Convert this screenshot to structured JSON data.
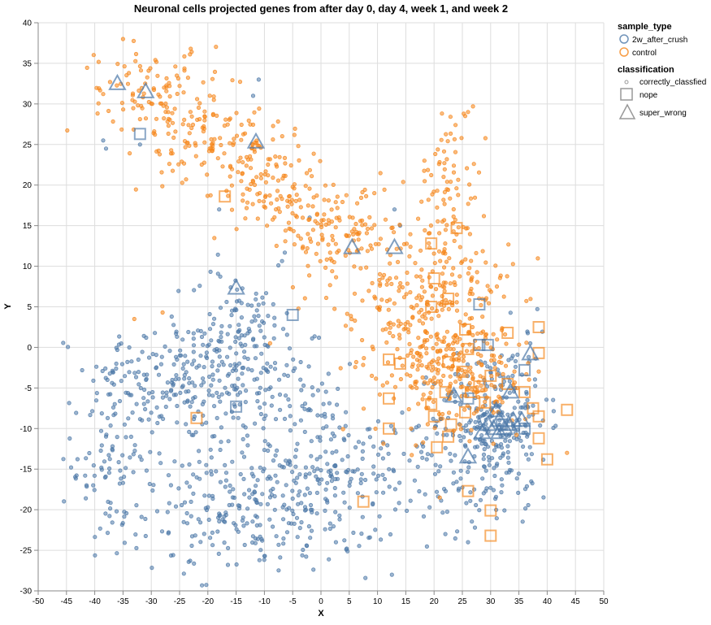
{
  "chart_data": {
    "type": "scatter",
    "title": "Neuronal cells projected genes from after day 0, day 4, week 1, and week 2",
    "xlabel": "X",
    "ylabel": "Y",
    "xlim": [
      -50,
      50
    ],
    "ylim": [
      -30,
      40
    ],
    "x_ticks": [
      -50,
      -45,
      -40,
      -35,
      -30,
      -25,
      -20,
      -15,
      -10,
      -5,
      0,
      5,
      10,
      15,
      20,
      25,
      30,
      35,
      40,
      45,
      50
    ],
    "y_ticks": [
      -30,
      -25,
      -20,
      -15,
      -10,
      -5,
      0,
      5,
      10,
      15,
      20,
      25,
      30,
      35,
      40
    ],
    "grid": true,
    "legend_position": "right",
    "legend": {
      "color_title": "sample_type",
      "color_entries": [
        {
          "label": "2w_after_crush",
          "color": "#4c78a8"
        },
        {
          "label": "control",
          "color": "#f58518"
        }
      ],
      "shape_title": "classification",
      "shape_entries": [
        {
          "label": "correctly_classfied",
          "shape": "circle"
        },
        {
          "label": "nope",
          "shape": "square"
        },
        {
          "label": "super_wrong",
          "shape": "triangle"
        }
      ]
    },
    "series": [
      {
        "name": "2w_after_crush",
        "color": "#4c78a8",
        "clusters": [
          {
            "cx": -25,
            "cy": -4,
            "sx": 8,
            "sy": 4,
            "n": 220
          },
          {
            "cx": -38,
            "cy": -14,
            "sx": 3,
            "sy": 6,
            "n": 80
          },
          {
            "cx": -12,
            "cy": -20,
            "sx": 11,
            "sy": 4,
            "n": 260
          },
          {
            "cx": 3,
            "cy": -16,
            "sx": 7,
            "sy": 4,
            "n": 130
          },
          {
            "cx": -12,
            "cy": -3,
            "sx": 6,
            "sy": 6,
            "n": 130
          },
          {
            "cx": -15,
            "cy": 4,
            "sx": 4,
            "sy": 3,
            "n": 40
          },
          {
            "cx": 30,
            "cy": -9,
            "sx": 5,
            "sy": 4,
            "n": 170
          },
          {
            "cx": 28,
            "cy": -15,
            "sx": 7,
            "sy": 4,
            "n": 110
          },
          {
            "cx": 35,
            "cy": -2,
            "sx": 3,
            "sy": 4,
            "n": 40
          },
          {
            "cx": -2,
            "cy": -8,
            "sx": 5,
            "sy": 3,
            "n": 40
          }
        ],
        "points": [
          {
            "x": -38.5,
            "y": 25.5
          },
          {
            "x": -38,
            "y": 24.5
          },
          {
            "x": -32,
            "y": 25
          },
          {
            "x": -11,
            "y": 33
          },
          {
            "x": -12,
            "y": 31
          },
          {
            "x": -18,
            "y": 17
          },
          {
            "x": -2,
            "y": 16
          },
          {
            "x": 13,
            "y": 17
          },
          {
            "x": 14,
            "y": 15
          },
          {
            "x": 22,
            "y": -23
          },
          {
            "x": 26,
            "y": -24
          }
        ],
        "nope": [
          {
            "x": -32,
            "y": 26.3
          },
          {
            "x": -5,
            "y": 4
          },
          {
            "x": -15,
            "y": -7.3
          },
          {
            "x": 28,
            "y": 5.3
          },
          {
            "x": 28,
            "y": 0.3
          },
          {
            "x": 29.5,
            "y": 0.3
          },
          {
            "x": 26,
            "y": -6.3
          },
          {
            "x": 36,
            "y": -2.8
          },
          {
            "x": 32,
            "y": -9.5
          },
          {
            "x": 36,
            "y": -10
          }
        ],
        "super_wrong": [
          {
            "x": -36,
            "y": 32.5
          },
          {
            "x": -31,
            "y": 31.5
          },
          {
            "x": -11.5,
            "y": 25.3
          },
          {
            "x": -15,
            "y": 7.3
          },
          {
            "x": 5.5,
            "y": 12.3
          },
          {
            "x": 13,
            "y": 12.3
          },
          {
            "x": 37,
            "y": -0.8
          },
          {
            "x": 23.5,
            "y": -6
          },
          {
            "x": 33.5,
            "y": -5.5
          },
          {
            "x": 31,
            "y": -7.8
          },
          {
            "x": 29.5,
            "y": -9.5
          },
          {
            "x": 30.5,
            "y": -10
          },
          {
            "x": 31.5,
            "y": -10.5
          },
          {
            "x": 32.5,
            "y": -10
          },
          {
            "x": 33.2,
            "y": -9.5
          },
          {
            "x": 34,
            "y": -9
          },
          {
            "x": 31.5,
            "y": -9
          },
          {
            "x": 28.5,
            "y": -10.5
          },
          {
            "x": 35.5,
            "y": -9
          },
          {
            "x": 26,
            "y": -13.5
          }
        ]
      },
      {
        "name": "control",
        "color": "#f58518",
        "clusters": [
          {
            "cx": -32,
            "cy": 32,
            "sx": 4,
            "sy": 2.5,
            "n": 60
          },
          {
            "cx": -24,
            "cy": 28,
            "sx": 5,
            "sy": 3.5,
            "n": 110
          },
          {
            "cx": -14,
            "cy": 24,
            "sx": 4,
            "sy": 3,
            "n": 80
          },
          {
            "cx": -7,
            "cy": 19,
            "sx": 4,
            "sy": 3,
            "n": 80
          },
          {
            "cx": 3,
            "cy": 14,
            "sx": 5,
            "sy": 3,
            "n": 110
          },
          {
            "cx": 14,
            "cy": 6,
            "sx": 6,
            "sy": 5,
            "n": 150
          },
          {
            "cx": 24,
            "cy": 4,
            "sx": 5,
            "sy": 6,
            "n": 150
          },
          {
            "cx": 23,
            "cy": 20,
            "sx": 2.5,
            "sy": 5,
            "n": 80
          },
          {
            "cx": 20,
            "cy": -4,
            "sx": 6,
            "sy": 3.5,
            "n": 120
          },
          {
            "cx": 30,
            "cy": -3,
            "sx": 4,
            "sy": 3,
            "n": 70
          }
        ],
        "points": [
          {
            "x": 43.5,
            "y": -13
          },
          {
            "x": -33,
            "y": 3.5
          },
          {
            "x": -28,
            "y": 4.3
          },
          {
            "x": -9,
            "y": 0.5
          },
          {
            "x": 9,
            "y": -3.5
          },
          {
            "x": 21,
            "y": -18.5
          },
          {
            "x": 26,
            "y": 29
          },
          {
            "x": 25.5,
            "y": 28.5
          },
          {
            "x": -35,
            "y": 38
          }
        ],
        "nope": [
          {
            "x": -17,
            "y": 18.6
          },
          {
            "x": 19.5,
            "y": 12.8
          },
          {
            "x": 24,
            "y": 14.7
          },
          {
            "x": 20,
            "y": 8.5
          },
          {
            "x": 22.5,
            "y": 6
          },
          {
            "x": 19.5,
            "y": 5
          },
          {
            "x": 25.5,
            "y": 2.2
          },
          {
            "x": 26,
            "y": -0.2
          },
          {
            "x": 33,
            "y": 1.8
          },
          {
            "x": 38.5,
            "y": 2.5
          },
          {
            "x": 12,
            "y": -1.5
          },
          {
            "x": 14,
            "y": -2
          },
          {
            "x": 22.5,
            "y": -1.8
          },
          {
            "x": 25,
            "y": -3
          },
          {
            "x": 30,
            "y": -3.5
          },
          {
            "x": 28,
            "y": -4.8
          },
          {
            "x": 33,
            "y": -4.5
          },
          {
            "x": 38.5,
            "y": -0.7
          },
          {
            "x": 12,
            "y": -6.3
          },
          {
            "x": 19.5,
            "y": -7
          },
          {
            "x": 22,
            "y": -5.5
          },
          {
            "x": 26.5,
            "y": -5.5
          },
          {
            "x": 36,
            "y": -5.5
          },
          {
            "x": 37.5,
            "y": -7.5
          },
          {
            "x": 43.5,
            "y": -7.7
          },
          {
            "x": 12,
            "y": -10
          },
          {
            "x": 20,
            "y": -8.5
          },
          {
            "x": 23,
            "y": -9.5
          },
          {
            "x": 25.5,
            "y": -8
          },
          {
            "x": 29,
            "y": -6.8
          },
          {
            "x": 38.5,
            "y": -8.5
          },
          {
            "x": 22.5,
            "y": -11
          },
          {
            "x": 20.5,
            "y": -12.3
          },
          {
            "x": 38.5,
            "y": -11.2
          },
          {
            "x": 40,
            "y": -13.8
          },
          {
            "x": 26,
            "y": -17.7
          },
          {
            "x": 7.5,
            "y": -19
          },
          {
            "x": 30,
            "y": -20.1
          },
          {
            "x": 30,
            "y": -23.2
          },
          {
            "x": -22,
            "y": -8.7
          }
        ],
        "super_wrong": []
      }
    ]
  }
}
